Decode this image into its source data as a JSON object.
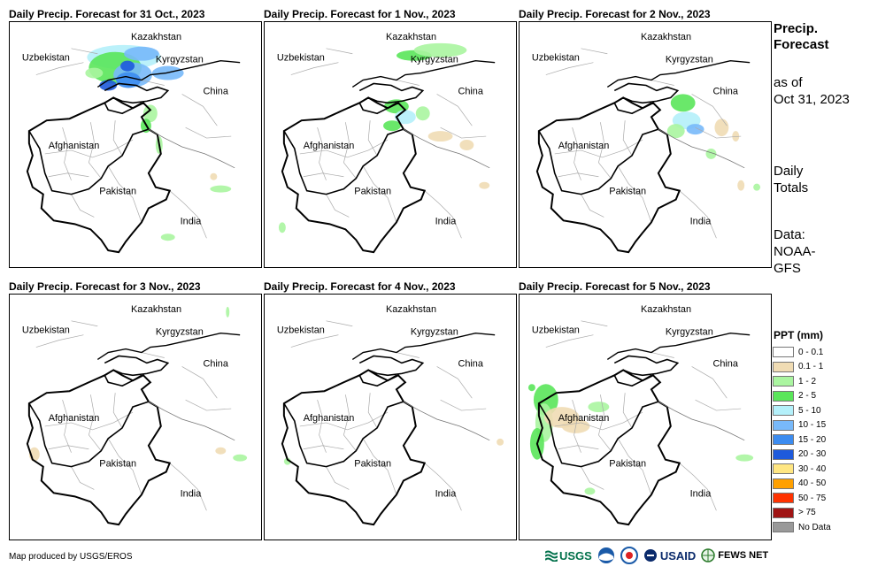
{
  "panels": [
    {
      "title": "Daily Precip. Forecast for 31 Oct., 2023"
    },
    {
      "title": "Daily Precip. Forecast for 1 Nov., 2023"
    },
    {
      "title": "Daily Precip. Forecast for 2 Nov., 2023"
    },
    {
      "title": "Daily Precip. Forecast for 3 Nov., 2023"
    },
    {
      "title": "Daily Precip. Forecast for 4 Nov., 2023"
    },
    {
      "title": "Daily Precip. Forecast for 5 Nov., 2023"
    }
  ],
  "map_labels": {
    "kazakhstan": "Kazakhstan",
    "uzbekistan": "Uzbekistan",
    "kyrgyzstan": "Kyrgyzstan",
    "china": "China",
    "afghanistan": "Afghanistan",
    "pakistan": "Pakistan",
    "india": "India"
  },
  "sidebar": {
    "title_line1": "Precip.",
    "title_line2": "Forecast",
    "asof_line1": "as of",
    "asof_line2": "Oct 31, 2023",
    "totals_line1": "Daily",
    "totals_line2": "Totals",
    "data_line1": "Data:",
    "data_line2": "NOAA-",
    "data_line3": "GFS"
  },
  "legend": {
    "title": "PPT (mm)",
    "items": [
      {
        "label": "0 - 0.1",
        "color": "#ffffff"
      },
      {
        "label": "0.1 - 1",
        "color": "#f0dcb4"
      },
      {
        "label": "1 - 2",
        "color": "#aaf5a0"
      },
      {
        "label": "2 - 5",
        "color": "#5ae65a"
      },
      {
        "label": "5 - 10",
        "color": "#b4f0fa"
      },
      {
        "label": "10 - 15",
        "color": "#78b9fa"
      },
      {
        "label": "15 - 20",
        "color": "#3c8cf0"
      },
      {
        "label": "20 - 30",
        "color": "#1e5adc"
      },
      {
        "label": "30 - 40",
        "color": "#ffe682"
      },
      {
        "label": "40 - 50",
        "color": "#ffa000"
      },
      {
        "label": "50 - 75",
        "color": "#ff3200"
      },
      {
        "label": "> 75",
        "color": "#a01414"
      },
      {
        "label": "No Data",
        "color": "#999999"
      }
    ]
  },
  "footer": {
    "credit": "Map produced by USGS/EROS",
    "logos": {
      "usgs": "USGS",
      "usaid": "USAID",
      "fewsnet": "FEWS NET"
    }
  }
}
